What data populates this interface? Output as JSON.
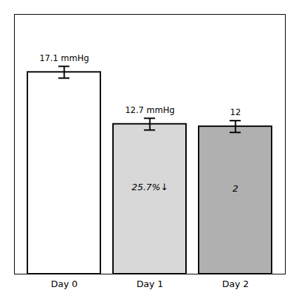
{
  "chart_data": {
    "type": "bar",
    "categories": [
      "Day 0",
      "Day 1",
      "Day 2"
    ],
    "values": [
      17.1,
      12.7,
      12.5
    ],
    "errors": [
      0.5,
      0.5,
      0.5
    ],
    "data_labels": true,
    "value_labels": [
      "17.1 mmHg",
      "12.7 mmHg",
      "12"
    ],
    "annotations": [
      {
        "category": "Day 1",
        "text": "25.7%↓"
      },
      {
        "category": "Day 2",
        "text": "2"
      }
    ],
    "colors": [
      "white",
      "#d8d8d8",
      "#b0b0b0"
    ],
    "ylim": [
      0,
      22
    ],
    "tick_labels": "x",
    "grid": false
  }
}
